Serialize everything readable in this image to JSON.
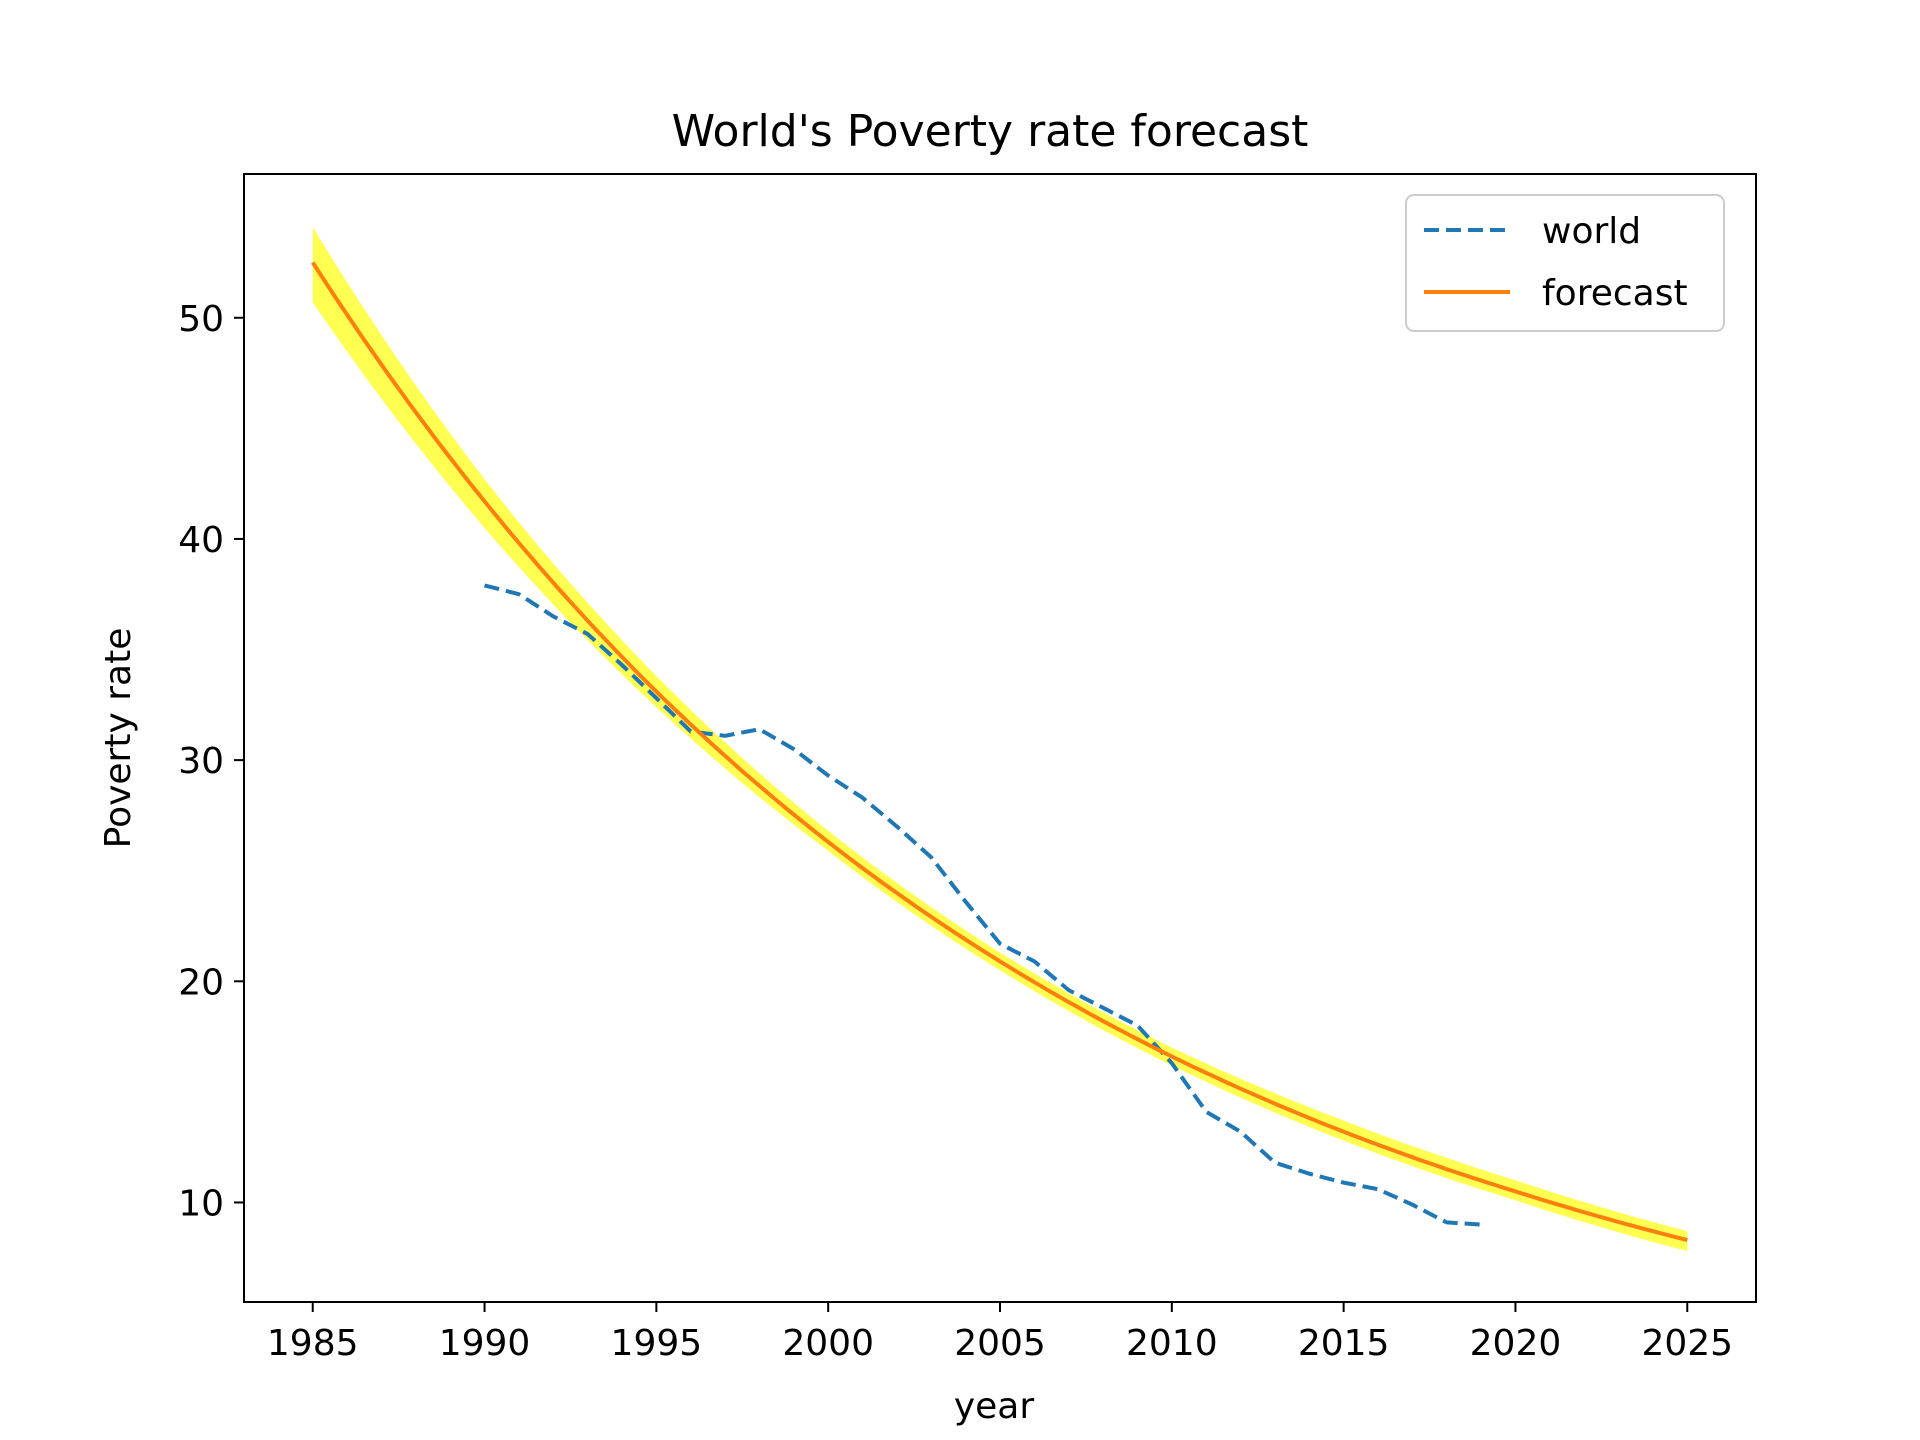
{
  "chart_data": {
    "type": "line",
    "title": "World's Poverty rate forecast",
    "xlabel": "year",
    "ylabel": "Poverty rate",
    "xlim": [
      1983,
      2027
    ],
    "ylim": [
      5.5,
      56.5
    ],
    "xticks": [
      1985,
      1990,
      1995,
      2000,
      2005,
      2010,
      2015,
      2020,
      2025
    ],
    "yticks": [
      10,
      20,
      30,
      40,
      50
    ],
    "grid": false,
    "legend_position": "upper-right",
    "series": [
      {
        "name": "world",
        "style": "dashed",
        "color": "#1f77b4",
        "x": [
          1990,
          1991,
          1992,
          1993,
          1994,
          1995,
          1996,
          1997,
          1998,
          1999,
          2000,
          2001,
          2002,
          2003,
          2004,
          2005,
          2006,
          2007,
          2008,
          2009,
          2010,
          2011,
          2012,
          2013,
          2014,
          2015,
          2016,
          2017,
          2018,
          2019
        ],
        "y": [
          37.9,
          37.5,
          36.5,
          35.7,
          34.3,
          32.8,
          31.3,
          31.1,
          31.4,
          30.5,
          29.3,
          28.3,
          27.0,
          25.6,
          23.6,
          21.7,
          20.9,
          19.6,
          18.8,
          18.0,
          16.3,
          14.1,
          13.2,
          11.8,
          11.3,
          10.9,
          10.6,
          9.9,
          9.1,
          9.0
        ]
      },
      {
        "name": "forecast",
        "style": "solid",
        "color": "#ff7f0e",
        "x": [
          1985,
          1990,
          1995,
          2000,
          2005,
          2010,
          2015,
          2020,
          2025
        ],
        "y": [
          52.5,
          41.7,
          33.1,
          26.3,
          20.9,
          16.6,
          13.2,
          10.5,
          8.3
        ]
      }
    ],
    "confidence_band": {
      "color": "#ffff33",
      "x": [
        1985,
        1990,
        1995,
        2000,
        2005,
        2010,
        2015,
        2020,
        2025
      ],
      "lower": [
        50.7,
        40.5,
        32.4,
        25.9,
        20.5,
        16.2,
        12.8,
        10.1,
        7.8
      ],
      "upper": [
        54.1,
        42.7,
        33.8,
        26.8,
        21.3,
        17.0,
        13.7,
        11.0,
        8.7
      ]
    }
  }
}
